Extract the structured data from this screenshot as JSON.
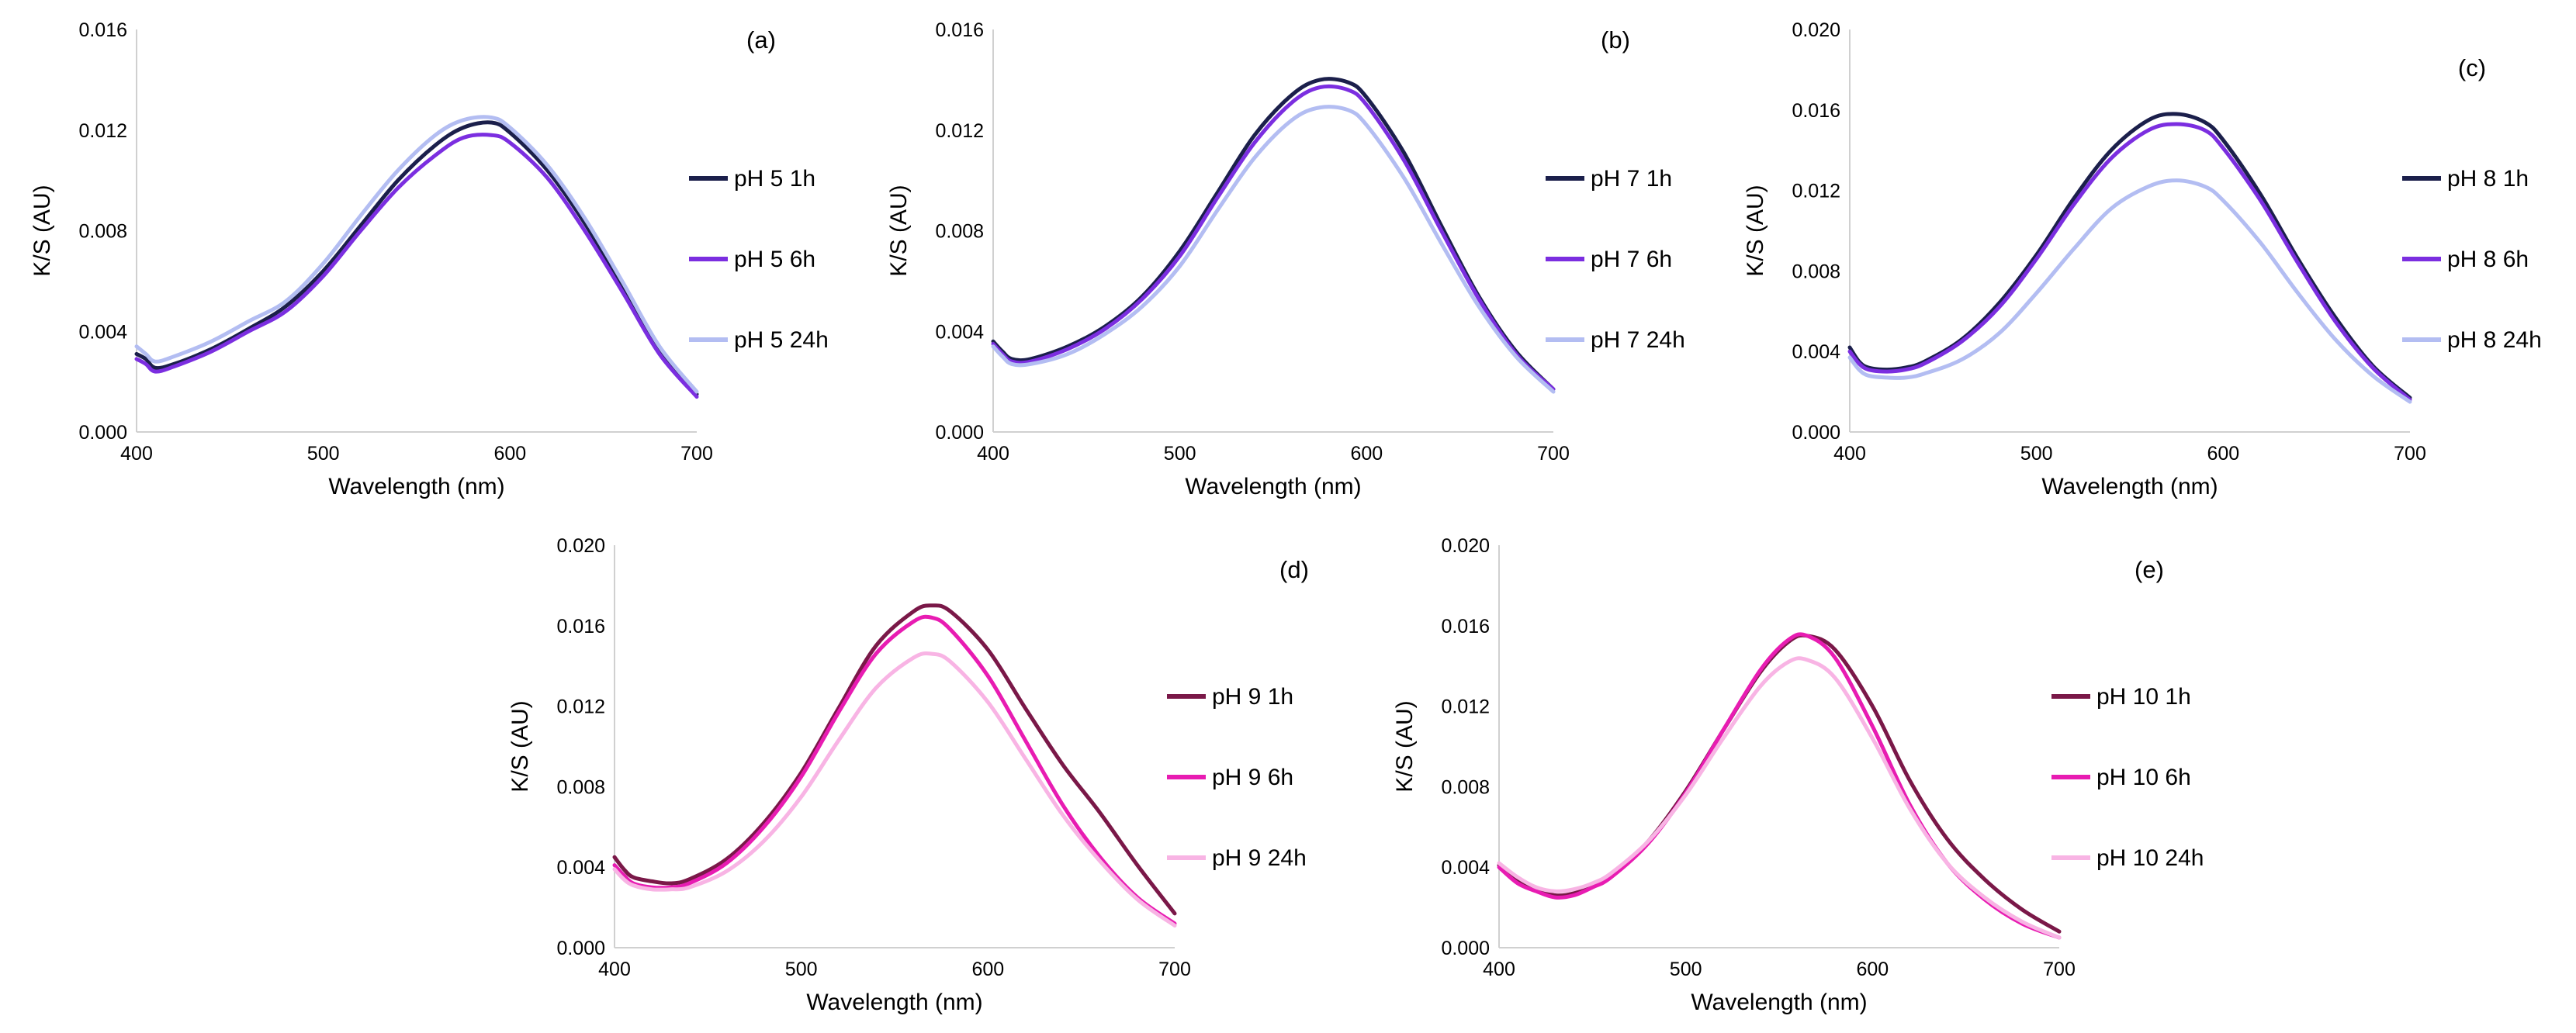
{
  "chart_data": [
    {
      "type": "line",
      "panel_label": "(a)",
      "xlabel": "Wavelength (nm)",
      "ylabel": "K/S (AU)",
      "xlim": [
        400,
        700
      ],
      "ylim": [
        0,
        0.016
      ],
      "xticks": [
        "400",
        "500",
        "600",
        "700"
      ],
      "yticks": [
        "0.000",
        "0.004",
        "0.008",
        "0.012",
        "0.016"
      ],
      "x": [
        400,
        405,
        410,
        420,
        440,
        460,
        480,
        500,
        520,
        540,
        560,
        575,
        590,
        600,
        620,
        640,
        660,
        680,
        700
      ],
      "series": [
        {
          "name": "pH 5 1h",
          "color": "#1b1f4b",
          "values": [
            0.0031,
            0.0029,
            0.00255,
            0.0027,
            0.0033,
            0.0041,
            0.005,
            0.0064,
            0.0082,
            0.01,
            0.0114,
            0.0121,
            0.0123,
            0.0119,
            0.0104,
            0.0083,
            0.0058,
            0.0032,
            0.0015
          ]
        },
        {
          "name": "pH 5 6h",
          "color": "#7b2ee0",
          "values": [
            0.0029,
            0.0027,
            0.0024,
            0.0026,
            0.0032,
            0.004,
            0.0048,
            0.0062,
            0.008,
            0.0097,
            0.011,
            0.0117,
            0.0118,
            0.0115,
            0.0101,
            0.008,
            0.0056,
            0.0031,
            0.0014
          ]
        },
        {
          "name": "pH 5 24h",
          "color": "#b3bdf2",
          "values": [
            0.0034,
            0.0031,
            0.0028,
            0.003,
            0.0036,
            0.0044,
            0.0052,
            0.0067,
            0.0086,
            0.0104,
            0.0118,
            0.0124,
            0.0125,
            0.0121,
            0.0106,
            0.0085,
            0.006,
            0.0034,
            0.0016
          ]
        }
      ]
    },
    {
      "type": "line",
      "panel_label": "(b)",
      "xlabel": "Wavelength (nm)",
      "ylabel": "K/S (AU)",
      "xlim": [
        400,
        700
      ],
      "ylim": [
        0,
        0.016
      ],
      "xticks": [
        "400",
        "500",
        "600",
        "700"
      ],
      "yticks": [
        "0.000",
        "0.004",
        "0.008",
        "0.012",
        "0.016"
      ],
      "x": [
        400,
        405,
        410,
        420,
        440,
        460,
        480,
        500,
        520,
        540,
        560,
        575,
        590,
        600,
        620,
        640,
        660,
        680,
        700
      ],
      "series": [
        {
          "name": "pH 7 1h",
          "color": "#1b1f4b",
          "values": [
            0.0036,
            0.0032,
            0.0029,
            0.0029,
            0.0034,
            0.0042,
            0.0054,
            0.0072,
            0.0095,
            0.0118,
            0.0134,
            0.014,
            0.0139,
            0.0133,
            0.0111,
            0.0082,
            0.0054,
            0.0032,
            0.0017
          ]
        },
        {
          "name": "pH 7 6h",
          "color": "#7b2ee0",
          "values": [
            0.0035,
            0.0031,
            0.0028,
            0.0028,
            0.0033,
            0.0041,
            0.0053,
            0.007,
            0.0093,
            0.0115,
            0.0131,
            0.0137,
            0.0136,
            0.013,
            0.0108,
            0.008,
            0.0053,
            0.0031,
            0.0017
          ]
        },
        {
          "name": "pH 7 24h",
          "color": "#b3bdf2",
          "values": [
            0.0034,
            0.003,
            0.0027,
            0.0027,
            0.0031,
            0.0039,
            0.005,
            0.0066,
            0.0088,
            0.0109,
            0.0124,
            0.0129,
            0.0128,
            0.0122,
            0.0101,
            0.0075,
            0.005,
            0.003,
            0.0016
          ]
        }
      ]
    },
    {
      "type": "line",
      "panel_label": "(c)",
      "xlabel": "Wavelength (nm)",
      "ylabel": "K/S (AU)",
      "xlim": [
        400,
        700
      ],
      "ylim": [
        0,
        0.02
      ],
      "xticks": [
        "400",
        "500",
        "600",
        "700"
      ],
      "yticks": [
        "0.000",
        "0.004",
        "0.008",
        "0.012",
        "0.016",
        "0.020"
      ],
      "x": [
        400,
        405,
        410,
        420,
        430,
        440,
        460,
        480,
        500,
        520,
        540,
        560,
        575,
        590,
        600,
        620,
        640,
        660,
        680,
        700
      ],
      "series": [
        {
          "name": "pH 8 1h",
          "color": "#1b1f4b",
          "values": [
            0.0042,
            0.0035,
            0.0032,
            0.0031,
            0.0032,
            0.0035,
            0.0046,
            0.0064,
            0.0088,
            0.0116,
            0.014,
            0.0155,
            0.0158,
            0.0154,
            0.0145,
            0.0118,
            0.0086,
            0.0057,
            0.0033,
            0.0017
          ]
        },
        {
          "name": "pH 8 6h",
          "color": "#7b2ee0",
          "values": [
            0.004,
            0.0034,
            0.0031,
            0.003,
            0.0031,
            0.0034,
            0.0045,
            0.0062,
            0.0086,
            0.0113,
            0.0136,
            0.015,
            0.0153,
            0.015,
            0.0141,
            0.0115,
            0.0084,
            0.0055,
            0.0032,
            0.0016
          ]
        },
        {
          "name": "pH 8 24h",
          "color": "#b3bdf2",
          "values": [
            0.0037,
            0.0031,
            0.0028,
            0.0027,
            0.0027,
            0.0029,
            0.0036,
            0.0049,
            0.0069,
            0.0091,
            0.0111,
            0.0122,
            0.0125,
            0.0122,
            0.0115,
            0.0094,
            0.0069,
            0.0046,
            0.0028,
            0.0015
          ]
        }
      ]
    },
    {
      "type": "line",
      "panel_label": "(d)",
      "xlabel": "Wavelength (nm)",
      "ylabel": "K/S (AU)",
      "xlim": [
        400,
        700
      ],
      "ylim": [
        0,
        0.02
      ],
      "xticks": [
        "400",
        "500",
        "600",
        "700"
      ],
      "yticks": [
        "0.000",
        "0.004",
        "0.008",
        "0.012",
        "0.016",
        "0.020"
      ],
      "x": [
        400,
        405,
        410,
        420,
        430,
        440,
        460,
        480,
        500,
        520,
        540,
        560,
        570,
        580,
        600,
        620,
        640,
        660,
        680,
        700
      ],
      "series": [
        {
          "name": "pH 9 1h",
          "color": "#7a1848",
          "values": [
            0.0045,
            0.0039,
            0.0035,
            0.0033,
            0.0032,
            0.0034,
            0.0044,
            0.0062,
            0.0087,
            0.0119,
            0.015,
            0.0167,
            0.017,
            0.0167,
            0.0148,
            0.0119,
            0.0091,
            0.0067,
            0.0041,
            0.0017
          ]
        },
        {
          "name": "pH 9 6h",
          "color": "#e81cb2",
          "values": [
            0.0041,
            0.0036,
            0.0032,
            0.003,
            0.003,
            0.0032,
            0.0042,
            0.006,
            0.0085,
            0.0117,
            0.0146,
            0.0162,
            0.0164,
            0.0158,
            0.0135,
            0.0103,
            0.0071,
            0.0045,
            0.0025,
            0.0012
          ]
        },
        {
          "name": "pH 9 24h",
          "color": "#f8b4e4",
          "values": [
            0.0039,
            0.0034,
            0.0031,
            0.0029,
            0.0029,
            0.003,
            0.0038,
            0.0053,
            0.0075,
            0.0103,
            0.0129,
            0.0144,
            0.0146,
            0.0142,
            0.0122,
            0.0094,
            0.0066,
            0.0043,
            0.0024,
            0.0011
          ]
        }
      ]
    },
    {
      "type": "line",
      "panel_label": "(e)",
      "xlabel": "Wavelength (nm)",
      "ylabel": "K/S (AU)",
      "xlim": [
        400,
        700
      ],
      "ylim": [
        0,
        0.02
      ],
      "xticks": [
        "400",
        "500",
        "600",
        "700"
      ],
      "yticks": [
        "0.000",
        "0.004",
        "0.008",
        "0.012",
        "0.016",
        "0.020"
      ],
      "x": [
        400,
        410,
        420,
        430,
        440,
        450,
        460,
        480,
        500,
        520,
        540,
        555,
        565,
        580,
        600,
        620,
        640,
        660,
        680,
        700
      ],
      "series": [
        {
          "name": "pH 10 1h",
          "color": "#7a1848",
          "values": [
            0.0041,
            0.0033,
            0.0029,
            0.0026,
            0.0027,
            0.0031,
            0.0036,
            0.0053,
            0.0078,
            0.0108,
            0.0137,
            0.0152,
            0.0155,
            0.0148,
            0.012,
            0.0083,
            0.0054,
            0.0034,
            0.0019,
            0.0008
          ]
        },
        {
          "name": "pH 10 6h",
          "color": "#e81cb2",
          "values": [
            0.004,
            0.0032,
            0.0028,
            0.0025,
            0.0026,
            0.003,
            0.0035,
            0.0052,
            0.0077,
            0.0108,
            0.0138,
            0.0153,
            0.0155,
            0.0144,
            0.011,
            0.0071,
            0.0042,
            0.0024,
            0.0012,
            0.0005
          ]
        },
        {
          "name": "pH 10 24h",
          "color": "#f8b4e4",
          "values": [
            0.0042,
            0.0035,
            0.003,
            0.0028,
            0.0029,
            0.0032,
            0.0037,
            0.0053,
            0.0076,
            0.0104,
            0.013,
            0.0142,
            0.0143,
            0.0134,
            0.0104,
            0.0069,
            0.0042,
            0.0025,
            0.0013,
            0.0005
          ]
        }
      ]
    }
  ]
}
